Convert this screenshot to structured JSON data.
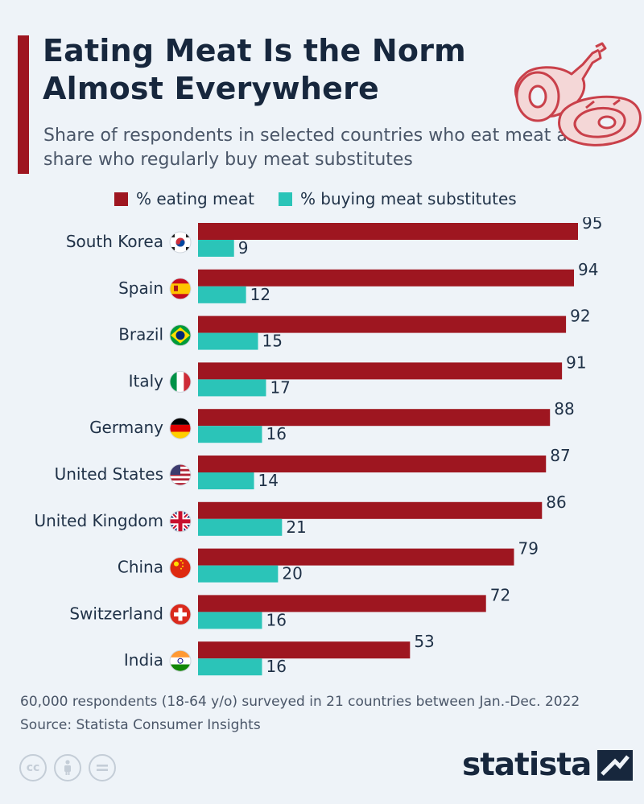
{
  "header": {
    "title": "Eating Meat Is the Norm Almost Everywhere",
    "subtitle": "Share of respondents in selected countries who eat meat and share who regularly buy meat substitutes"
  },
  "colors": {
    "eating_meat": "#9e1620",
    "buying_substitutes": "#2bc4b8",
    "accent": "#9e1620",
    "background": "#eef3f8"
  },
  "chart_data": {
    "type": "bar",
    "orientation": "horizontal",
    "categories": [
      "South Korea",
      "Spain",
      "Brazil",
      "Italy",
      "Germany",
      "United States",
      "United Kingdom",
      "China",
      "Switzerland",
      "India"
    ],
    "flag_icons": [
      "south-korea-flag-icon",
      "spain-flag-icon",
      "brazil-flag-icon",
      "italy-flag-icon",
      "germany-flag-icon",
      "united-states-flag-icon",
      "united-kingdom-flag-icon",
      "china-flag-icon",
      "switzerland-flag-icon",
      "india-flag-icon"
    ],
    "series": [
      {
        "name": "% eating meat",
        "values": [
          95,
          94,
          92,
          91,
          88,
          87,
          86,
          79,
          72,
          53
        ]
      },
      {
        "name": "% buying meat substitutes",
        "values": [
          9,
          12,
          15,
          17,
          16,
          14,
          21,
          20,
          16,
          16
        ]
      }
    ],
    "xlim": [
      0,
      100
    ],
    "grid": false,
    "legend_position": "top",
    "data_labels": true
  },
  "footer": {
    "note": "60,000 respondents (18-64 y/o) surveyed in 21 countries between Jan.-Dec. 2022",
    "source": "Source: Statista Consumer Insights",
    "brand": "statista",
    "license_icons": [
      "creative-commons-icon",
      "attribution-icon",
      "no-derivatives-icon"
    ]
  }
}
